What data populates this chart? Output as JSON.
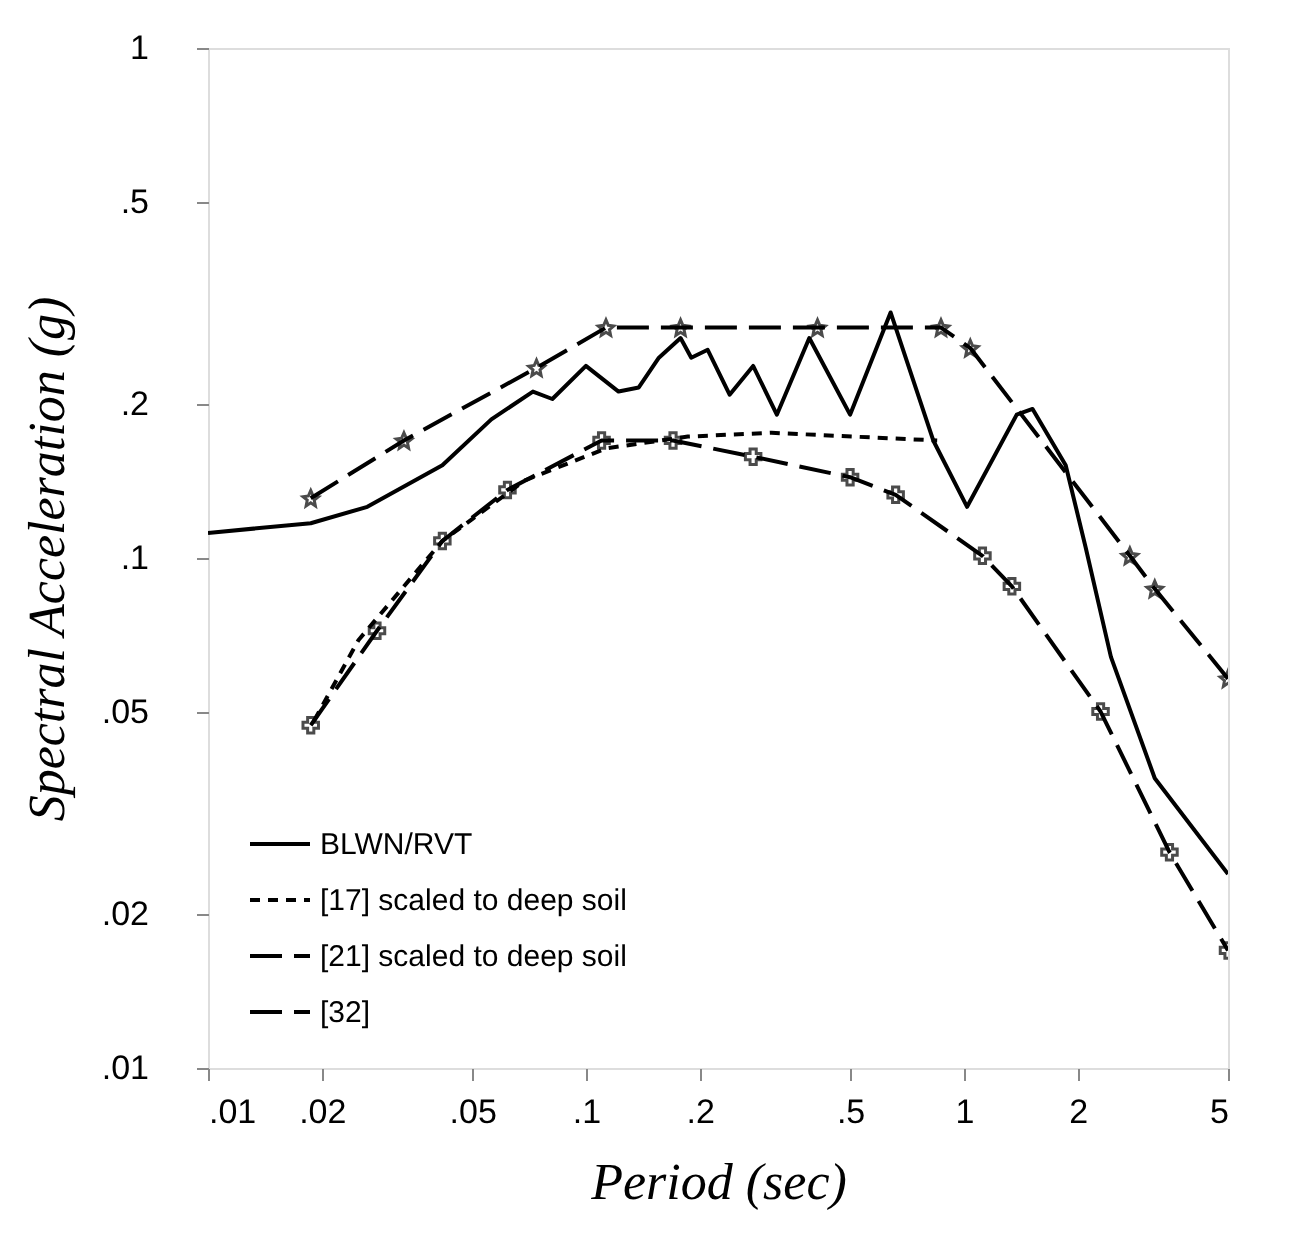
{
  "chart_data": {
    "type": "line",
    "xlabel": "Period (sec)",
    "ylabel": "Spectral Acceleration (g)",
    "log": "xy",
    "grid": false,
    "legend": "bottom left",
    "xlim": [
      0.01,
      5
    ],
    "ylim": [
      0.01,
      1
    ],
    "xticks": [
      {
        "value": 0.01,
        "label": ".01"
      },
      {
        "value": 0.02,
        "label": ".02"
      },
      {
        "value": 0.05,
        "label": ".05"
      },
      {
        "value": 0.1,
        "label": ".1"
      },
      {
        "value": 0.2,
        "label": ".2"
      },
      {
        "value": 0.5,
        "label": ".5"
      },
      1,
      2,
      5
    ],
    "yticks": [
      {
        "value": 0.01,
        "label": ".01"
      },
      {
        "value": 0.02,
        "label": ".02"
      },
      {
        "value": 0.05,
        "label": ".05"
      },
      {
        "value": 0.1,
        "label": ".1"
      },
      {
        "value": 0.2,
        "label": ".2"
      },
      {
        "value": 0.5,
        "label": ".5"
      },
      1
    ],
    "series": [
      {
        "name": "BLWN/RVT",
        "color": "#000000",
        "line_style": "solid",
        "marker": "none",
        "x": [
          0.01,
          0.0187,
          0.0264,
          0.0417,
          0.0562,
          0.0724,
          0.0815,
          0.1,
          0.122,
          0.138,
          0.156,
          0.178,
          0.19,
          0.21,
          0.24,
          0.277,
          0.32,
          0.39,
          0.5,
          0.64,
          0.83,
          1.02,
          1.38,
          1.52,
          1.86,
          2.1,
          2.45,
          3.2,
          5
        ],
        "values": [
          0.112,
          0.117,
          0.126,
          0.152,
          0.187,
          0.212,
          0.205,
          0.238,
          0.212,
          0.216,
          0.247,
          0.27,
          0.247,
          0.256,
          0.209,
          0.238,
          0.191,
          0.27,
          0.191,
          0.303,
          0.17,
          0.126,
          0.191,
          0.196,
          0.152,
          0.105,
          0.064,
          0.037,
          0.024
        ]
      },
      {
        "name": "[17] scaled to deep soil",
        "color": "#000000",
        "line_style": "dotted",
        "marker": "none",
        "x": [
          0.0191,
          0.025,
          0.0417,
          0.069,
          0.113,
          0.186,
          0.31,
          0.85
        ],
        "values": [
          0.048,
          0.069,
          0.108,
          0.142,
          0.164,
          0.173,
          0.176,
          0.17
        ]
      },
      {
        "name": "[21] scaled to deep soil",
        "color": "#000000",
        "line_style": "dashed",
        "marker": "cross",
        "x": [
          0.0187,
          0.028,
          0.0417,
          0.062,
          0.11,
          0.17,
          0.277,
          0.5,
          0.66,
          1.12,
          1.34,
          2.3,
          3.5,
          5
        ],
        "values": [
          0.047,
          0.072,
          0.108,
          0.136,
          0.17,
          0.17,
          0.158,
          0.144,
          0.133,
          0.101,
          0.088,
          0.05,
          0.0265,
          0.017
        ]
      },
      {
        "name": "[32]",
        "color": "#000000",
        "line_style": "dashed",
        "marker": "star",
        "x": [
          0.0187,
          0.033,
          0.074,
          0.113,
          0.178,
          0.41,
          0.87,
          1.04,
          2.75,
          3.2,
          5
        ],
        "values": [
          0.131,
          0.17,
          0.236,
          0.283,
          0.283,
          0.283,
          0.283,
          0.258,
          0.101,
          0.087,
          0.058
        ]
      }
    ]
  }
}
